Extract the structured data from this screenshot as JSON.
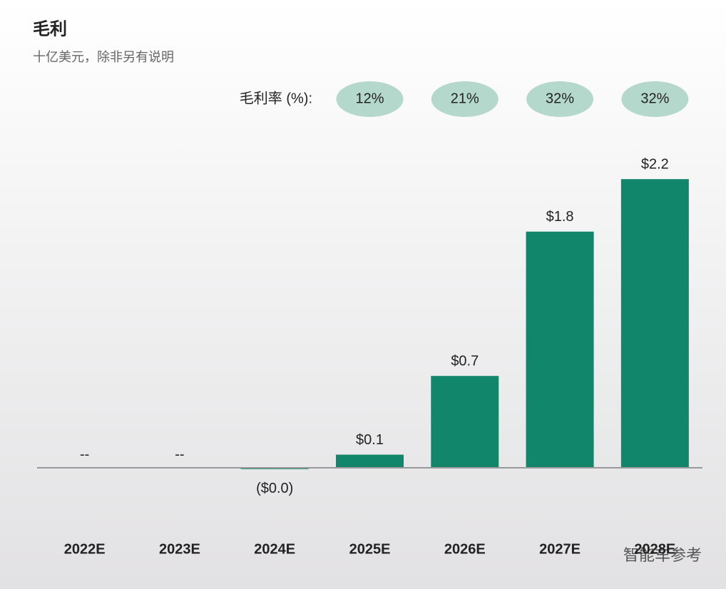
{
  "chart_data": {
    "type": "bar",
    "title": "毛利",
    "subtitle": "十亿美元，除非另有说明",
    "categories": [
      "2022E",
      "2023E",
      "2024E",
      "2025E",
      "2026E",
      "2027E",
      "2028E"
    ],
    "values": [
      null,
      null,
      -0.01,
      0.1,
      0.7,
      1.8,
      2.2
    ],
    "value_labels": [
      "--",
      "--",
      "($0.0)",
      "$0.1",
      "$0.7",
      "$1.8",
      "$2.2"
    ],
    "color": "#11866a",
    "ylim": [
      -0.5,
      2.5
    ],
    "margin_row": {
      "label": "毛利率 (%):",
      "values": [
        null,
        null,
        null,
        12,
        21,
        32,
        32
      ],
      "value_labels": [
        null,
        null,
        null,
        "12%",
        "21%",
        "32%",
        "32%"
      ],
      "color": "#b5d8cd"
    },
    "watermark": "智能车参考"
  }
}
